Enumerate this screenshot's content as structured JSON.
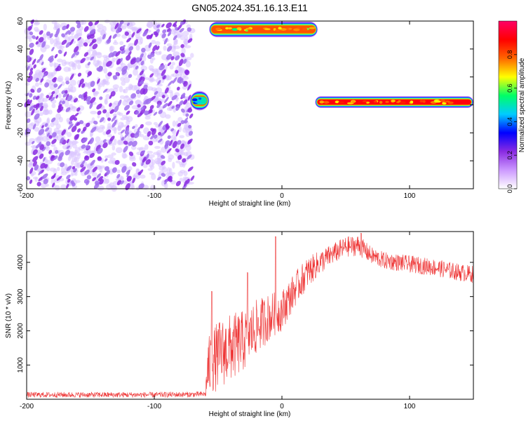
{
  "title": "GN05.2024.351.16.13.E11",
  "chart_data": [
    {
      "type": "heatmap",
      "xlabel": "Height of straight line (km)",
      "ylabel": "Frequency (Hz)",
      "xlim": [
        -200,
        150
      ],
      "ylim": [
        -60,
        60
      ],
      "xticks": [
        -200,
        -100,
        0,
        100
      ],
      "yticks": [
        -60,
        -40,
        -20,
        0,
        20,
        40,
        60
      ],
      "colorbar": {
        "label": "Normalized spectral amplitude",
        "range": [
          0,
          1
        ],
        "ticks": [
          0.0,
          0.2,
          0.4,
          0.6,
          0.8
        ],
        "colors": [
          "#ffffff",
          "#cc99ff",
          "#8a2be2",
          "#0000ff",
          "#00ccff",
          "#00ff66",
          "#ffff00",
          "#ff6600",
          "#ff0000",
          "#ff0066"
        ]
      },
      "regions": [
        {
          "kind": "speckle",
          "x": [
            -200,
            -70
          ],
          "y": [
            -60,
            60
          ],
          "amplitude": 0.15,
          "color": "#8a2be2"
        },
        {
          "kind": "band",
          "x": [
            -57,
            28
          ],
          "y_center": 54,
          "y_halfwidth": 4,
          "amplitude": 0.8
        },
        {
          "kind": "blob",
          "x": [
            -72,
            -57
          ],
          "y_center": 3,
          "y_halfwidth": 5,
          "amplitude": 0.5
        },
        {
          "kind": "band",
          "x": [
            26,
            150
          ],
          "y_center": 2,
          "y_halfwidth": 3,
          "amplitude": 0.9
        }
      ]
    },
    {
      "type": "line",
      "xlabel": "Height of straight line (km)",
      "ylabel": "SNR (10 * v/v)",
      "xlim": [
        -200,
        150
      ],
      "ylim": [
        0,
        4900
      ],
      "xticks": [
        -200,
        -100,
        0,
        100
      ],
      "yticks": [
        1000,
        2000,
        3000,
        4000
      ],
      "color": "#ee3333",
      "envelope_x": [
        -200,
        -150,
        -100,
        -70,
        -60,
        -58,
        -50,
        -40,
        -30,
        -20,
        -10,
        0,
        10,
        20,
        30,
        40,
        50,
        60,
        70,
        80,
        100,
        120,
        140,
        150
      ],
      "envelope_y": [
        130,
        130,
        130,
        140,
        150,
        900,
        1300,
        1500,
        1700,
        2100,
        2400,
        2600,
        3200,
        3700,
        4000,
        4250,
        4450,
        4500,
        4200,
        4050,
        3950,
        3850,
        3700,
        3650
      ],
      "noise": [
        80,
        80,
        80,
        80,
        80,
        900,
        1000,
        1000,
        900,
        800,
        700,
        600,
        500,
        450,
        350,
        300,
        300,
        300,
        250,
        250,
        250,
        250,
        250,
        250
      ],
      "spikes": [
        {
          "x": -55,
          "y": 3150
        },
        {
          "x": -27,
          "y": 3700
        },
        {
          "x": -5,
          "y": 4750
        },
        {
          "x": 62,
          "y": 4850
        }
      ]
    }
  ]
}
